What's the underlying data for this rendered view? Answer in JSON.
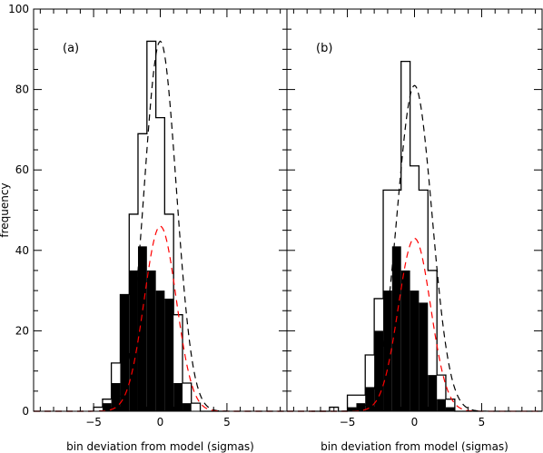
{
  "chart_data": [
    {
      "type": "histogram",
      "panel_label": "(a)",
      "xlabel": "bin deviation from model (sigmas)",
      "ylabel": "frequency",
      "xlim": [
        -9.5,
        9.5
      ],
      "ylim": [
        0,
        100
      ],
      "x_ticks": [
        -5,
        0,
        5
      ],
      "y_ticks": [
        0,
        20,
        40,
        60,
        80,
        100
      ],
      "bin_edges": [
        -5,
        -4.33,
        -3.67,
        -3,
        -2.33,
        -1.67,
        -1,
        -0.33,
        0.33,
        1,
        1.67,
        2.33,
        3,
        3.67,
        4.33,
        5
      ],
      "series": [
        {
          "style": "open",
          "values": [
            1,
            3,
            12,
            29,
            49,
            69,
            92,
            73,
            49,
            24,
            7,
            2,
            0,
            0,
            0
          ]
        },
        {
          "style": "filled",
          "values": [
            0,
            2,
            7,
            29,
            35,
            41,
            35,
            30,
            28,
            7,
            2,
            0,
            0,
            0,
            0
          ]
        }
      ],
      "curves": [
        {
          "color": "#000000",
          "amp": 92,
          "mu": 0,
          "sigma": 1.2
        },
        {
          "color": "#ff0000",
          "amp": 46,
          "mu": 0,
          "sigma": 1.2
        }
      ]
    },
    {
      "type": "histogram",
      "panel_label": "(b)",
      "xlabel": "bin deviation from model (sigmas)",
      "ylabel": "",
      "xlim": [
        -9.5,
        9.5
      ],
      "ylim": [
        0,
        100
      ],
      "x_ticks": [
        -5,
        0,
        5
      ],
      "y_ticks": [
        0,
        20,
        40,
        60,
        80,
        100
      ],
      "bin_edges": [
        -7.67,
        -7,
        -6.33,
        -5.67,
        -5,
        -4.33,
        -3.67,
        -3,
        -2.33,
        -1.67,
        -1,
        -0.33,
        0.33,
        1,
        1.67,
        2.33,
        3,
        3.67,
        4.33,
        5
      ],
      "series": [
        {
          "style": "open",
          "values": [
            0,
            0,
            1,
            0,
            4,
            4,
            14,
            28,
            55,
            55,
            87,
            61,
            55,
            35,
            9,
            3,
            0,
            0,
            0
          ]
        },
        {
          "style": "filled",
          "values": [
            0,
            0,
            0,
            0,
            1,
            2,
            6,
            20,
            30,
            41,
            35,
            30,
            27,
            9,
            3,
            1,
            0,
            0,
            0
          ]
        }
      ],
      "curves": [
        {
          "color": "#000000",
          "amp": 81,
          "mu": 0,
          "sigma": 1.3
        },
        {
          "color": "#ff0000",
          "amp": 43,
          "mu": 0,
          "sigma": 1.2
        }
      ]
    }
  ]
}
